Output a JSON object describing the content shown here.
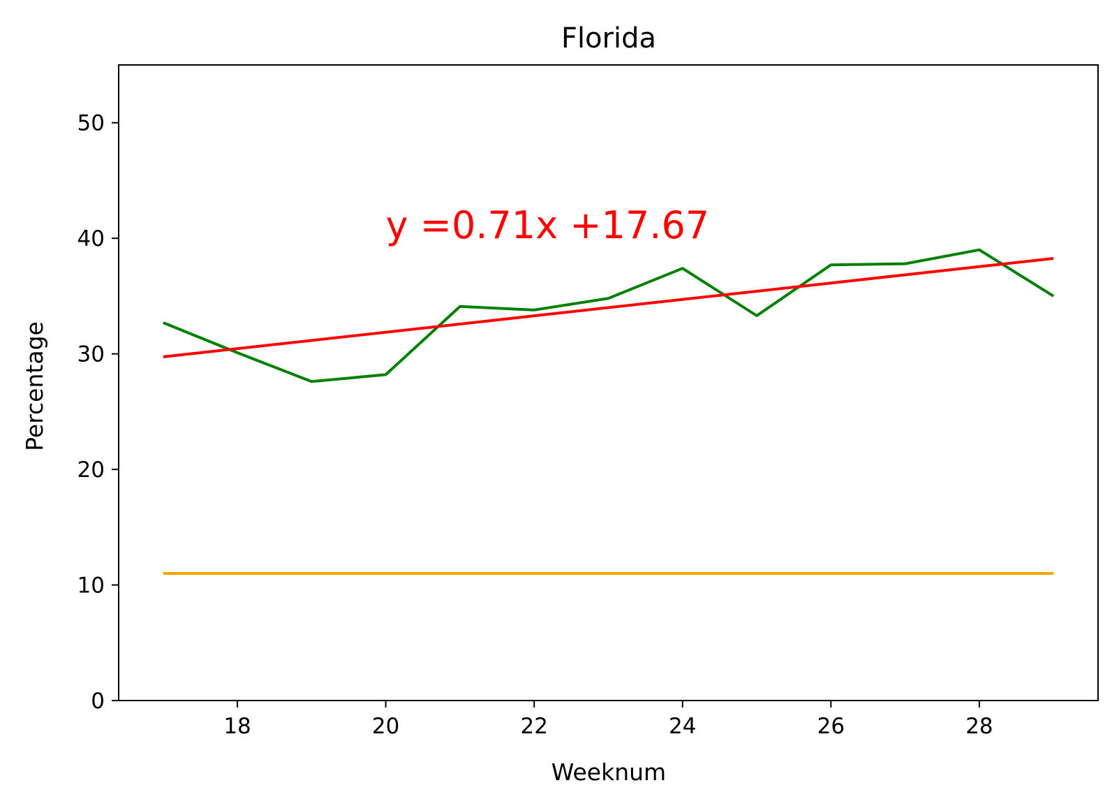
{
  "chart_data": {
    "type": "line",
    "title": "Florida",
    "xlabel": "Weeknum",
    "ylabel": "Percentage",
    "xlim": [
      16.4,
      29.6
    ],
    "ylim": [
      0,
      55
    ],
    "xticks": [
      18,
      20,
      22,
      24,
      26,
      28
    ],
    "yticks": [
      0,
      10,
      20,
      30,
      40,
      50
    ],
    "grid": false,
    "legend": "none",
    "annotation": {
      "text": "y =0.71x +17.67",
      "x": 20,
      "y": 40,
      "color": "#ff0000"
    },
    "series": [
      {
        "color": "#008000",
        "x": [
          17,
          18,
          19,
          20,
          21,
          22,
          23,
          24,
          25,
          26,
          27,
          28,
          29
        ],
        "y": [
          32.7,
          30.1,
          27.6,
          28.2,
          34.1,
          33.8,
          34.8,
          37.4,
          33.3,
          37.7,
          37.8,
          39.0,
          35.0
        ]
      },
      {
        "color": "#ff0000",
        "x": [
          17,
          29
        ],
        "y": [
          29.74,
          38.26
        ]
      },
      {
        "color": "#ffa500",
        "x": [
          17,
          29
        ],
        "y": [
          11.0,
          11.0
        ]
      }
    ]
  }
}
